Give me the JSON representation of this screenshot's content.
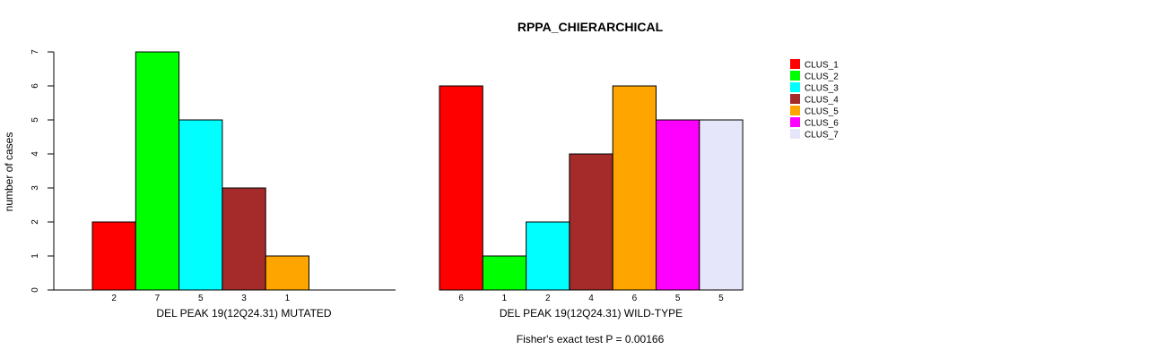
{
  "chart_data": {
    "type": "bar",
    "title": "RPPA_CHIERARCHICAL",
    "ylabel": "number of cases",
    "ylim": [
      0,
      7
    ],
    "yticks": [
      0,
      1,
      2,
      3,
      4,
      5,
      6,
      7
    ],
    "footnote": "Fisher's exact test P = 0.00166",
    "legend_position": "right",
    "categories": [
      "CLUS_1",
      "CLUS_2",
      "CLUS_3",
      "CLUS_4",
      "CLUS_5",
      "CLUS_6",
      "CLUS_7"
    ],
    "colors": [
      "#ff0000",
      "#00ff00",
      "#00ffff",
      "#a52a2a",
      "#ffa500",
      "#ff00ff",
      "#e6e6fa"
    ],
    "panels": [
      {
        "xlabel": "DEL PEAK 19(12Q24.31) MUTATED",
        "values": [
          2,
          7,
          5,
          3,
          1,
          0,
          0
        ],
        "bar_labels": [
          "2",
          "7",
          "5",
          "3",
          "1"
        ]
      },
      {
        "xlabel": "DEL PEAK 19(12Q24.31) WILD-TYPE",
        "values": [
          6,
          1,
          2,
          4,
          6,
          5,
          5
        ],
        "bar_labels": [
          "6",
          "1",
          "2",
          "4",
          "6",
          "5",
          "5"
        ]
      }
    ]
  }
}
